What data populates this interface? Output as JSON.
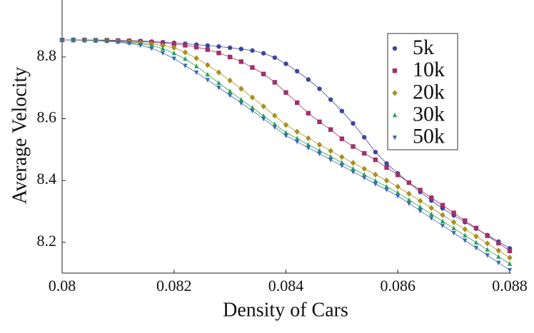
{
  "chart_data": {
    "type": "line",
    "x_label": "Density of Cars",
    "y_label": "Average Velocity",
    "x": [
      0.08,
      0.0802,
      0.0804,
      0.0806,
      0.0808,
      0.081,
      0.0812,
      0.0814,
      0.0816,
      0.0818,
      0.082,
      0.0822,
      0.0824,
      0.0826,
      0.0828,
      0.083,
      0.0832,
      0.0834,
      0.0836,
      0.0838,
      0.084,
      0.0842,
      0.0844,
      0.0846,
      0.0848,
      0.085,
      0.0852,
      0.0854,
      0.0856,
      0.0858,
      0.086,
      0.0862,
      0.0864,
      0.0866,
      0.0868,
      0.087,
      0.0872,
      0.0874,
      0.0876,
      0.0878,
      0.088
    ],
    "series": [
      {
        "name": "5k",
        "color": "#3c44a0",
        "marker": "circle",
        "values": [
          8.855,
          8.855,
          8.855,
          8.855,
          8.855,
          8.854,
          8.853,
          8.852,
          8.85,
          8.848,
          8.846,
          8.843,
          8.84,
          8.837,
          8.834,
          8.83,
          8.826,
          8.821,
          8.812,
          8.798,
          8.778,
          8.754,
          8.727,
          8.697,
          8.662,
          8.625,
          8.585,
          8.54,
          8.492,
          8.455,
          8.423,
          8.393,
          8.363,
          8.335,
          8.31,
          8.287,
          8.265,
          8.244,
          8.223,
          8.202,
          8.18
        ]
      },
      {
        "name": "10k",
        "color": "#a0306a",
        "marker": "square",
        "values": [
          8.855,
          8.855,
          8.855,
          8.854,
          8.854,
          8.853,
          8.852,
          8.85,
          8.848,
          8.845,
          8.842,
          8.838,
          8.832,
          8.824,
          8.813,
          8.8,
          8.785,
          8.766,
          8.745,
          8.718,
          8.685,
          8.652,
          8.618,
          8.59,
          8.565,
          8.535,
          8.51,
          8.488,
          8.467,
          8.442,
          8.418,
          8.393,
          8.369,
          8.344,
          8.32,
          8.295,
          8.27,
          8.246,
          8.221,
          8.197,
          8.172
        ]
      },
      {
        "name": "20k",
        "color": "#a8901e",
        "marker": "diamond",
        "values": [
          8.855,
          8.855,
          8.855,
          8.854,
          8.853,
          8.851,
          8.849,
          8.846,
          8.842,
          8.837,
          8.83,
          8.815,
          8.796,
          8.774,
          8.75,
          8.724,
          8.697,
          8.669,
          8.64,
          8.61,
          8.58,
          8.558,
          8.537,
          8.516,
          8.496,
          8.476,
          8.457,
          8.438,
          8.419,
          8.4,
          8.38,
          8.357,
          8.334,
          8.311,
          8.288,
          8.265,
          8.242,
          8.219,
          8.196,
          8.173,
          8.15
        ]
      },
      {
        "name": "30k",
        "color": "#2aa05a",
        "marker": "triangle-up",
        "values": [
          8.855,
          8.855,
          8.855,
          8.854,
          8.852,
          8.85,
          8.847,
          8.843,
          8.837,
          8.827,
          8.812,
          8.794,
          8.77,
          8.743,
          8.716,
          8.689,
          8.662,
          8.636,
          8.609,
          8.582,
          8.555,
          8.536,
          8.516,
          8.497,
          8.477,
          8.458,
          8.438,
          8.419,
          8.399,
          8.38,
          8.36,
          8.337,
          8.314,
          8.291,
          8.268,
          8.245,
          8.222,
          8.199,
          8.176,
          8.153,
          8.13
        ]
      },
      {
        "name": "50k",
        "color": "#3a6ab0",
        "marker": "triangle-down",
        "values": [
          8.855,
          8.855,
          8.854,
          8.853,
          8.851,
          8.848,
          8.844,
          8.838,
          8.828,
          8.813,
          8.795,
          8.772,
          8.75,
          8.726,
          8.701,
          8.676,
          8.651,
          8.626,
          8.6,
          8.573,
          8.545,
          8.526,
          8.506,
          8.487,
          8.467,
          8.448,
          8.428,
          8.409,
          8.389,
          8.37,
          8.35,
          8.326,
          8.302,
          8.278,
          8.254,
          8.23,
          8.206,
          8.182,
          8.158,
          8.134,
          8.11
        ]
      }
    ],
    "xlim": [
      0.08,
      0.088
    ],
    "xticks": [
      0.08,
      0.082,
      0.084,
      0.086,
      0.088
    ],
    "ylim": [
      8.1,
      8.98
    ],
    "yticks": [
      8.2,
      8.4,
      8.6,
      8.8
    ],
    "legend": "upper right"
  }
}
